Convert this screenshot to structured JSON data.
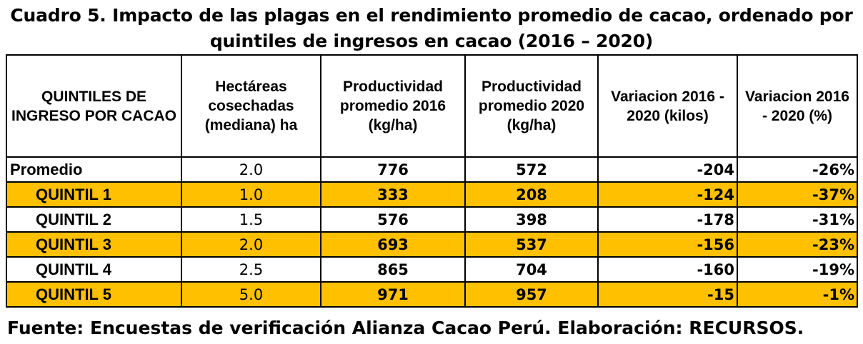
{
  "title": "Cuadro 5. Impacto de las plagas en el rendimiento promedio de cacao, ordenado por quintiles de ingresos en cacao (2016 – 2020)",
  "table": {
    "headers": [
      "QUINTILES DE INGRESO POR CACAO",
      "Hectáreas cosechadas (mediana) ha",
      "Productividad promedio 2016 (kg/ha)",
      "Productividad promedio 2020 (kg/ha)",
      "Variacion 2016 - 2020 (kilos)",
      "Variacion 2016 - 2020 (%)"
    ],
    "rows": [
      {
        "name": "Promedio",
        "ha": "2.0",
        "p2016": "776",
        "p2020": "572",
        "var_kg": "-204",
        "var_pct": "-26%",
        "highlight": false
      },
      {
        "name": "QUINTIL 1",
        "ha": "1.0",
        "p2016": "333",
        "p2020": "208",
        "var_kg": "-124",
        "var_pct": "-37%",
        "highlight": true
      },
      {
        "name": "QUINTIL 2",
        "ha": "1.5",
        "p2016": "576",
        "p2020": "398",
        "var_kg": "-178",
        "var_pct": "-31%",
        "highlight": false
      },
      {
        "name": "QUINTIL 3",
        "ha": "2.0",
        "p2016": "693",
        "p2020": "537",
        "var_kg": "-156",
        "var_pct": "-23%",
        "highlight": true
      },
      {
        "name": "QUINTIL 4",
        "ha": "2.5",
        "p2016": "865",
        "p2020": "704",
        "var_kg": "-160",
        "var_pct": "-19%",
        "highlight": false
      },
      {
        "name": "QUINTIL 5",
        "ha": "5.0",
        "p2016": "971",
        "p2020": "957",
        "var_kg": "-15",
        "var_pct": "-1%",
        "highlight": true
      }
    ]
  },
  "highlight_color": "#ffc000",
  "source": "Fuente: Encuestas de verificación Alianza Cacao Perú. Elaboración: RECURSOS."
}
